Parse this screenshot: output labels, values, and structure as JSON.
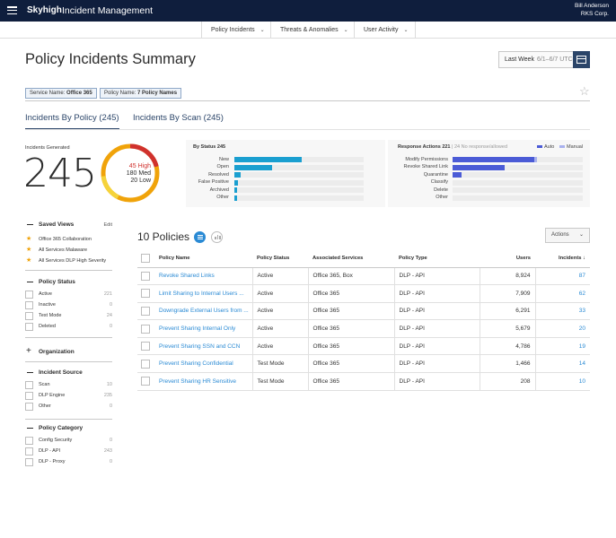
{
  "header": {
    "brand": "Skyhigh",
    "app_title": "Incident Management",
    "user_name": "Bill Anderson",
    "user_org": "RKS Corp."
  },
  "nav": {
    "tabs": [
      {
        "label": "Policy Incidents"
      },
      {
        "label": "Threats & Anomalies"
      },
      {
        "label": "User Activity"
      }
    ]
  },
  "page": {
    "title": "Policy Incidents Summary",
    "date_label": "Last Week",
    "date_range": "6/1–6/7 UTC"
  },
  "filters": {
    "service_key": "Service Name:",
    "service_value": "Office 365",
    "policy_key": "Policy Name:",
    "policy_value": "7 Policy Names"
  },
  "view_tabs": {
    "by_policy": "Incidents By Policy (245)",
    "by_scan": "Incidents By Scan (245)"
  },
  "summary": {
    "label": "Incidents Generated",
    "total": "245",
    "high_count": "45",
    "high_label": "High",
    "med_count": "180",
    "med_label": "Med",
    "low_count": "20",
    "low_label": "Low"
  },
  "by_status": {
    "title": "By Status",
    "count": "245",
    "items": [
      {
        "label": "New",
        "value": 0.52
      },
      {
        "label": "Open",
        "value": 0.29
      },
      {
        "label": "Resolved",
        "value": 0.05
      },
      {
        "label": "False Positive",
        "value": 0.03
      },
      {
        "label": "Archived",
        "value": 0.02
      },
      {
        "label": "Other",
        "value": 0.02
      }
    ],
    "color": "#1a9fd0"
  },
  "response_actions": {
    "title": "Response Actions",
    "count": "221",
    "note": "24 No response/allowed",
    "legend_auto": "Auto",
    "legend_manual": "Manual",
    "color_auto": "#4b5bd6",
    "color_manual": "#a9b1ee",
    "items": [
      {
        "label": "Modify Permissions",
        "auto": 0.63,
        "manual": 0.02
      },
      {
        "label": "Revoke Shared Link",
        "auto": 0.4,
        "manual": 0
      },
      {
        "label": "Quarantine",
        "auto": 0.07,
        "manual": 0
      },
      {
        "label": "Classify",
        "auto": 0,
        "manual": 0
      },
      {
        "label": "Delete",
        "auto": 0,
        "manual": 0
      },
      {
        "label": "Other",
        "auto": 0,
        "manual": 0
      }
    ]
  },
  "sidebar": {
    "saved_views": {
      "title": "Saved Views",
      "edit": "Edit",
      "items": [
        "Office 365 Collaboration",
        "All Services Malaware",
        "All Services DLP High Severity"
      ]
    },
    "policy_status": {
      "title": "Policy Status",
      "items": [
        {
          "label": "Active",
          "count": "221"
        },
        {
          "label": "Inactive",
          "count": "0"
        },
        {
          "label": "Test Mode",
          "count": "24"
        },
        {
          "label": "Deleted",
          "count": "0"
        }
      ]
    },
    "organization": {
      "title": "Organization"
    },
    "incident_source": {
      "title": "Incident Source",
      "items": [
        {
          "label": "Scan",
          "count": "10"
        },
        {
          "label": "DLP Engine",
          "count": "235"
        },
        {
          "label": "Other",
          "count": "0"
        }
      ]
    },
    "policy_category": {
      "title": "Policy Category",
      "items": [
        {
          "label": "Config Security",
          "count": "0"
        },
        {
          "label": "DLP - API",
          "count": "243"
        },
        {
          "label": "DLP - Proxy",
          "count": "0"
        }
      ]
    }
  },
  "policies": {
    "title": "10 Policies",
    "actions_label": "Actions",
    "columns": {
      "name": "Policy Name",
      "status": "Policy Status",
      "services": "Associated Services",
      "type": "Policy Type",
      "users": "Users",
      "incidents": "Incidents ↓"
    },
    "rows": [
      {
        "name": "Revoke Shared Links",
        "status": "Active",
        "services": "Office 365, Box",
        "type": "DLP - API",
        "users": "8,924",
        "incidents": "87"
      },
      {
        "name": "Limit Sharing to Internal Users ...",
        "status": "Active",
        "services": "Office 365",
        "type": "DLP - API",
        "users": "7,909",
        "incidents": "62"
      },
      {
        "name": "Downgrade External Users from ...",
        "status": "Active",
        "services": "Office 365",
        "type": "DLP - API",
        "users": "6,291",
        "incidents": "33"
      },
      {
        "name": "Prevent Sharing Internal Only",
        "status": "Active",
        "services": "Office 365",
        "type": "DLP - API",
        "users": "5,679",
        "incidents": "20"
      },
      {
        "name": "Prevent Sharing SSN and CCN",
        "status": "Active",
        "services": "Office 365",
        "type": "DLP - API",
        "users": "4,786",
        "incidents": "19"
      },
      {
        "name": "Prevent Sharing Confidential",
        "status": "Test Mode",
        "services": "Office 365",
        "type": "DLP - API",
        "users": "1,466",
        "incidents": "14"
      },
      {
        "name": "Prevent Sharing HR Sensitive",
        "status": "Test Mode",
        "services": "Office 365",
        "type": "DLP - API",
        "users": "208",
        "incidents": "10"
      }
    ]
  }
}
